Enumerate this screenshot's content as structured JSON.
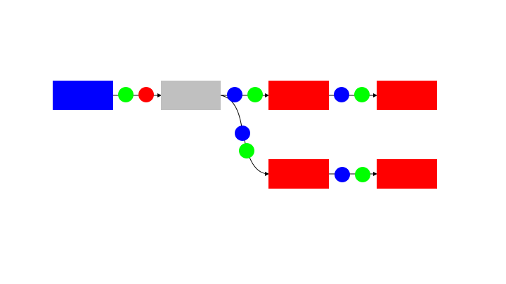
{
  "diagram": {
    "colors": {
      "background": "#ffffff",
      "edge": "#000000",
      "blue": "#0000ff",
      "red": "#ff0000",
      "gray": "#c0c0c0",
      "green": "#00ff00"
    },
    "nodes": [
      {
        "id": "n1",
        "color": "#0000ff"
      },
      {
        "id": "n2",
        "color": "#c0c0c0"
      },
      {
        "id": "n3",
        "color": "#ff0000"
      },
      {
        "id": "n4",
        "color": "#ff0000"
      },
      {
        "id": "n5",
        "color": "#ff0000"
      },
      {
        "id": "n6",
        "color": "#ff0000"
      }
    ],
    "edges": [
      {
        "from": "n1",
        "to": "n2",
        "tokens": [
          "#00ff00",
          "#ff0000"
        ]
      },
      {
        "from": "n2",
        "to": "n3",
        "tokens": [
          "#0000ff",
          "#00ff00"
        ]
      },
      {
        "from": "n3",
        "to": "n4",
        "tokens": [
          "#0000ff",
          "#00ff00"
        ]
      },
      {
        "from": "n2",
        "to": "n5",
        "tokens": [
          "#0000ff",
          "#00ff00"
        ]
      },
      {
        "from": "n5",
        "to": "n6",
        "tokens": [
          "#0000ff",
          "#00ff00"
        ]
      }
    ]
  }
}
